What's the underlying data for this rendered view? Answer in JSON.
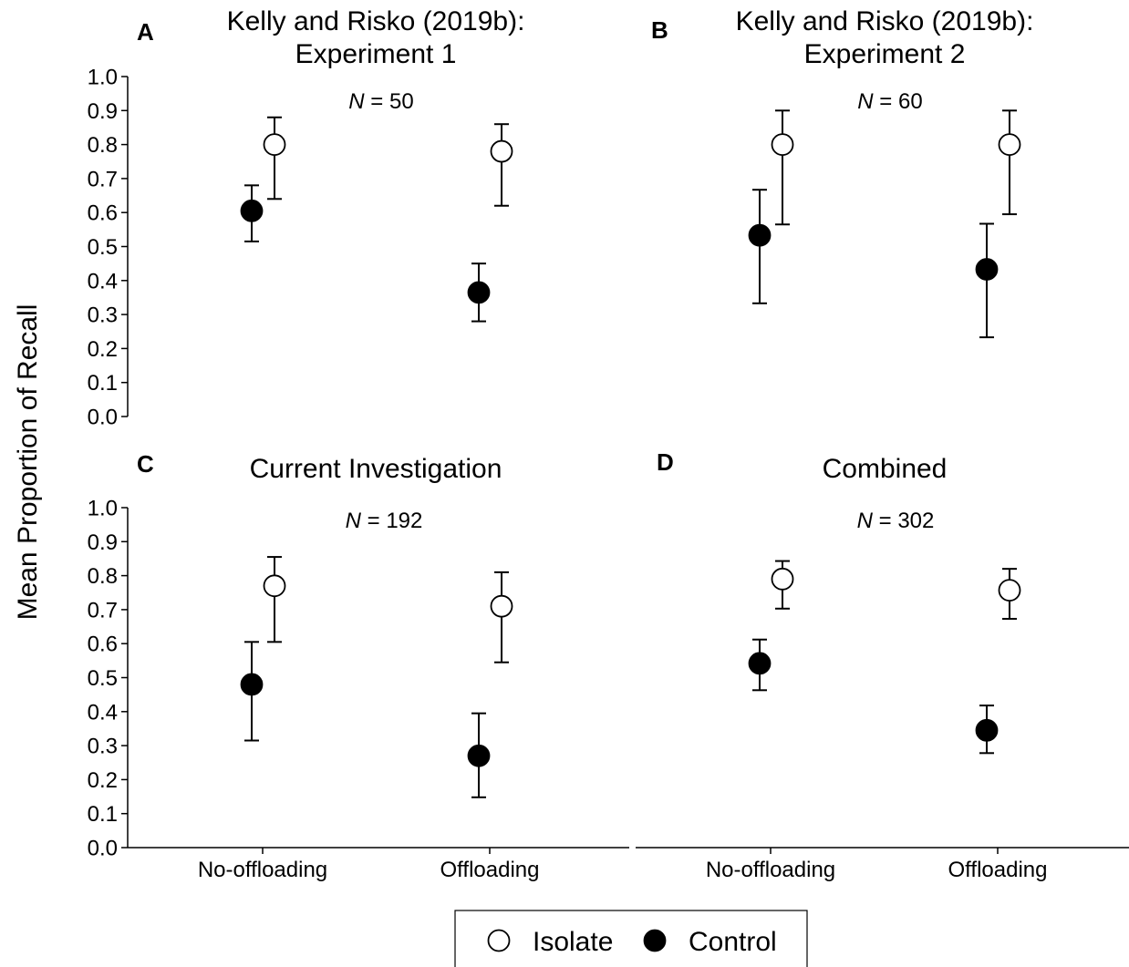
{
  "figure": {
    "ylabel": "Mean Proportion of Recall",
    "legend": {
      "placement": "bottom",
      "entries": [
        {
          "name": "Isolate",
          "marker": "open-circle"
        },
        {
          "name": "Control",
          "marker": "filled-circle"
        }
      ]
    }
  },
  "chart_data": [
    {
      "type": "scatter",
      "panel": "A",
      "title_lines": [
        "Kelly and Risko (2019b):",
        "Experiment 1"
      ],
      "annotation": {
        "italic": "N",
        "rest": " = 50"
      },
      "categories": [
        "No-offloading",
        "Offloading"
      ],
      "ylim": [
        0,
        1
      ],
      "yticks": [
        "0.0",
        "0.1",
        "0.2",
        "0.3",
        "0.4",
        "0.5",
        "0.6",
        "0.7",
        "0.8",
        "0.9",
        "1.0"
      ],
      "series": [
        {
          "name": "Isolate",
          "values": [
            0.8,
            0.78
          ],
          "lower": [
            0.64,
            0.62
          ],
          "upper": [
            0.88,
            0.86
          ]
        },
        {
          "name": "Control",
          "values": [
            0.605,
            0.365
          ],
          "lower": [
            0.515,
            0.28
          ],
          "upper": [
            0.68,
            0.45
          ]
        }
      ]
    },
    {
      "type": "scatter",
      "panel": "B",
      "title_lines": [
        "Kelly and Risko (2019b):",
        "Experiment 2"
      ],
      "annotation": {
        "italic": "N",
        "rest": " = 60"
      },
      "categories": [
        "No-offloading",
        "Offloading"
      ],
      "ylim": [
        0,
        1
      ],
      "yticks": [],
      "series": [
        {
          "name": "Isolate",
          "values": [
            0.8,
            0.8
          ],
          "lower": [
            0.565,
            0.595
          ],
          "upper": [
            0.9,
            0.9
          ]
        },
        {
          "name": "Control",
          "values": [
            0.533,
            0.433
          ],
          "lower": [
            0.333,
            0.233
          ],
          "upper": [
            0.667,
            0.567
          ]
        }
      ]
    },
    {
      "type": "scatter",
      "panel": "C",
      "title_lines": [
        "Current Investigation"
      ],
      "annotation": {
        "italic": "N",
        "rest": " = 192"
      },
      "categories": [
        "No-offloading",
        "Offloading"
      ],
      "ylim": [
        0,
        1
      ],
      "yticks": [
        "0.0",
        "0.1",
        "0.2",
        "0.3",
        "0.4",
        "0.5",
        "0.6",
        "0.7",
        "0.8",
        "0.9",
        "1.0"
      ],
      "xticks": [
        "No-offloading",
        "Offloading"
      ],
      "series": [
        {
          "name": "Isolate",
          "values": [
            0.77,
            0.71
          ],
          "lower": [
            0.605,
            0.545
          ],
          "upper": [
            0.855,
            0.81
          ]
        },
        {
          "name": "Control",
          "values": [
            0.48,
            0.27
          ],
          "lower": [
            0.315,
            0.148
          ],
          "upper": [
            0.605,
            0.395
          ]
        }
      ]
    },
    {
      "type": "scatter",
      "panel": "D",
      "title_lines": [
        "Combined"
      ],
      "annotation": {
        "italic": "N",
        "rest": " = 302"
      },
      "categories": [
        "No-offloading",
        "Offloading"
      ],
      "ylim": [
        0,
        1
      ],
      "yticks": [],
      "xticks": [
        "No-offloading",
        "Offloading"
      ],
      "series": [
        {
          "name": "Isolate",
          "values": [
            0.79,
            0.757
          ],
          "lower": [
            0.703,
            0.673
          ],
          "upper": [
            0.843,
            0.82
          ]
        },
        {
          "name": "Control",
          "values": [
            0.542,
            0.345
          ],
          "lower": [
            0.463,
            0.278
          ],
          "upper": [
            0.612,
            0.418
          ]
        }
      ]
    }
  ]
}
